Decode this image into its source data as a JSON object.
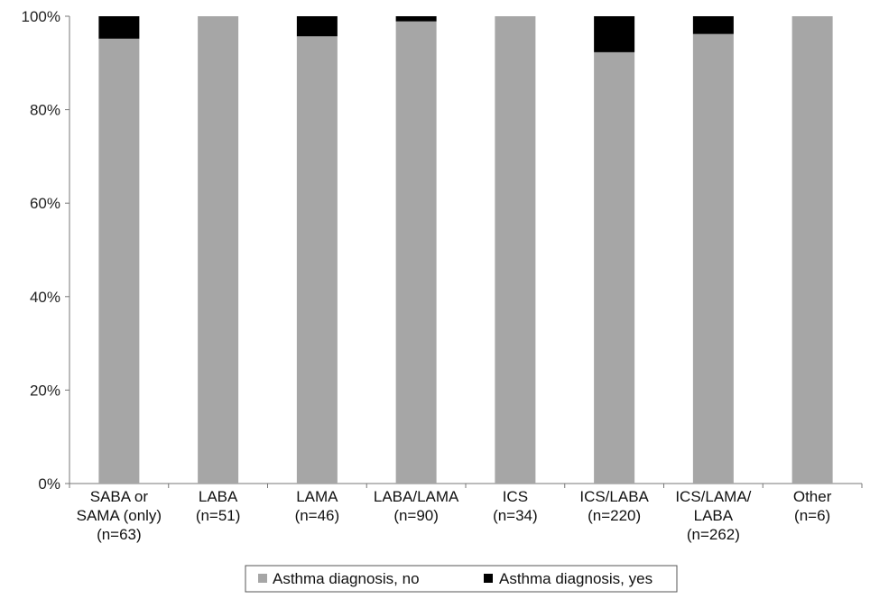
{
  "chart_data": {
    "type": "bar",
    "stacked": true,
    "normalized": true,
    "title": "",
    "xlabel": "",
    "ylabel": "",
    "ylim": [
      0,
      100
    ],
    "yticks": [
      "0%",
      "20%",
      "40%",
      "60%",
      "80%",
      "100%"
    ],
    "grid": false,
    "legend_position": "bottom",
    "categories": [
      [
        "SABA or",
        "SAMA (only)",
        "(n=63)"
      ],
      [
        "LABA",
        "(n=51)"
      ],
      [
        "LAMA",
        "(n=46)"
      ],
      [
        "LABA/LAMA",
        "(n=90)"
      ],
      [
        "ICS",
        "(n=34)"
      ],
      [
        "ICS/LABA",
        "(n=220)"
      ],
      [
        "ICS/LAMA/",
        "LABA",
        "(n=262)"
      ],
      [
        "Other",
        "(n=6)"
      ]
    ],
    "series": [
      {
        "name": "Asthma diagnosis, no",
        "color": "#a6a6a6",
        "values": [
          95.2,
          100,
          95.7,
          98.9,
          100,
          92.3,
          96.2,
          100
        ]
      },
      {
        "name": "Asthma diagnosis, yes",
        "color": "#000000",
        "values": [
          4.8,
          0,
          4.3,
          1.1,
          0,
          7.7,
          3.8,
          0
        ]
      }
    ]
  }
}
